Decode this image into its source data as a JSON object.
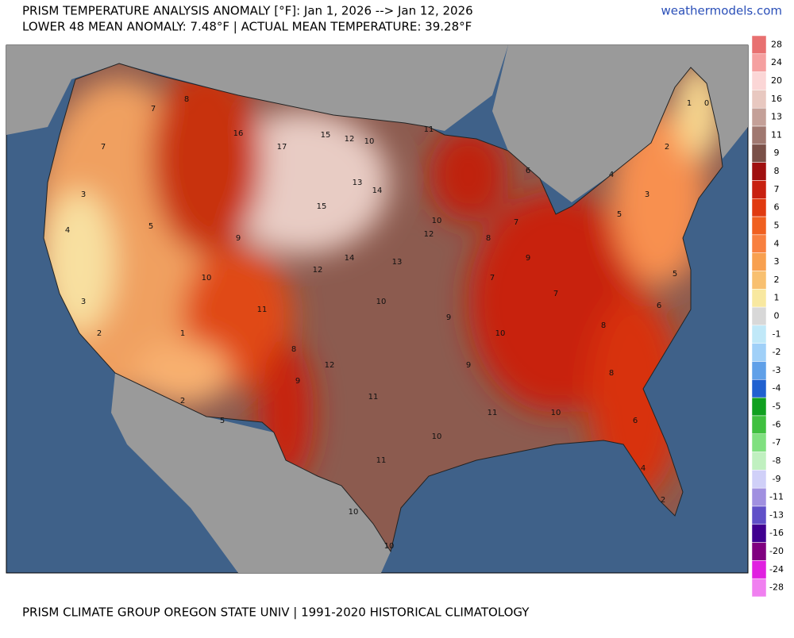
{
  "header": {
    "title": "PRISM TEMPERATURE ANALYSIS ANOMALY [°F]: Jan 1, 2026 --> Jan 12, 2026",
    "subtitle": "LOWER 48 MEAN ANOMALY: 7.48°F | ACTUAL MEAN TEMPERATURE: 39.28°F",
    "site": "weathermodels.com"
  },
  "footer": "PRISM CLIMATE GROUP OREGON STATE UNIV | 1991-2020 HISTORICAL CLIMATOLOGY",
  "legend": {
    "levels": [
      {
        "label": 28,
        "color": "#e87070"
      },
      {
        "label": 24,
        "color": "#f5a0a0"
      },
      {
        "label": 20,
        "color": "#fbd6d6"
      },
      {
        "label": 16,
        "color": "#e8c8c0"
      },
      {
        "label": 13,
        "color": "#c4a098"
      },
      {
        "label": 11,
        "color": "#a07870"
      },
      {
        "label": 9,
        "color": "#7a5048"
      },
      {
        "label": 8,
        "color": "#a01010"
      },
      {
        "label": 7,
        "color": "#c82010"
      },
      {
        "label": 6,
        "color": "#e03a10"
      },
      {
        "label": 5,
        "color": "#f06020"
      },
      {
        "label": 4,
        "color": "#f88040"
      },
      {
        "label": 3,
        "color": "#f8a050"
      },
      {
        "label": 2,
        "color": "#f8c070"
      },
      {
        "label": 1,
        "color": "#f8e8a0"
      },
      {
        "label": 0,
        "color": "#d8d8d8"
      },
      {
        "label": -1,
        "color": "#c0e8f8"
      },
      {
        "label": -2,
        "color": "#a0d0f8"
      },
      {
        "label": -3,
        "color": "#60a0e8"
      },
      {
        "label": -4,
        "color": "#2060d0"
      },
      {
        "label": -5,
        "color": "#10a020"
      },
      {
        "label": -6,
        "color": "#40c040"
      },
      {
        "label": -7,
        "color": "#80e080"
      },
      {
        "label": -8,
        "color": "#c0f0c0"
      },
      {
        "label": -9,
        "color": "#d0d0f8"
      },
      {
        "label": -11,
        "color": "#a090e0"
      },
      {
        "label": -13,
        "color": "#6050c8"
      },
      {
        "label": -16,
        "color": "#400090"
      },
      {
        "label": -20,
        "color": "#800080"
      },
      {
        "label": -24,
        "color": "#e020e0"
      },
      {
        "label": -28,
        "color": "#f080f0"
      }
    ]
  },
  "map": {
    "labels": [
      7,
      8,
      16,
      17,
      15,
      12,
      10,
      11,
      13,
      14,
      15,
      14,
      12,
      10,
      8,
      7,
      6,
      5,
      3,
      2,
      1,
      0,
      4,
      9,
      7,
      8,
      6,
      5,
      8,
      6,
      4,
      2,
      10,
      11,
      10,
      11,
      10,
      10,
      12,
      9,
      8,
      5,
      2,
      1,
      3,
      4,
      2,
      7,
      3,
      5,
      9,
      10,
      11,
      12,
      13,
      10,
      11,
      9,
      10,
      9,
      7
    ]
  }
}
